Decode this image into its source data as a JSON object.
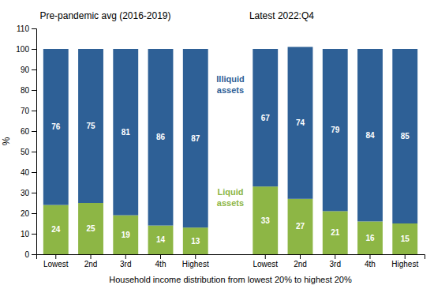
{
  "chart_data": {
    "type": "bar",
    "stacked": true,
    "data_labels": true,
    "grid": false,
    "groups": [
      {
        "title": "Pre-pandemic avg (2016-2019)",
        "categories": [
          "Lowest",
          "2nd",
          "3rd",
          "4th",
          "Highest"
        ]
      },
      {
        "title": "Latest 2022:Q4",
        "categories": [
          "Lowest",
          "2nd",
          "3rd",
          "4th",
          "Highest"
        ]
      }
    ],
    "xlabel": "Household income distribution from lowest 20% to highest 20%",
    "ylabel": "%",
    "series": [
      {
        "name": "Liquid\nassets",
        "color": "#8db645",
        "values": [
          24,
          25,
          19,
          14,
          13,
          33,
          27,
          21,
          16,
          15
        ]
      },
      {
        "name": "Illiquid\nassets",
        "color": "#2e6096",
        "values": [
          76,
          75,
          81,
          86,
          87,
          67,
          74,
          79,
          84,
          85
        ]
      }
    ],
    "ylim": [
      0,
      110
    ],
    "yticks": [
      0,
      10,
      20,
      30,
      40,
      50,
      60,
      70,
      80,
      90,
      100,
      110
    ]
  }
}
